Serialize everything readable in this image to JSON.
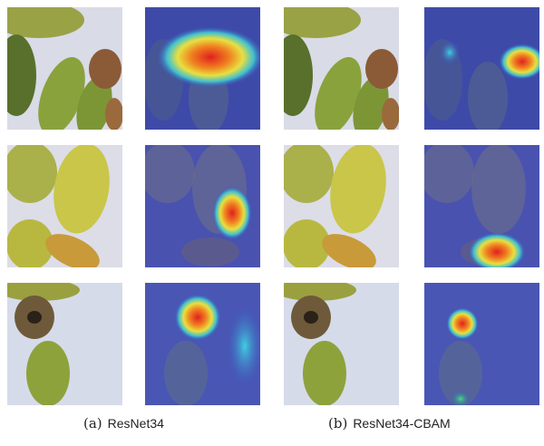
{
  "captions": {
    "a": {
      "label": "(a)",
      "name": "ResNet34"
    },
    "b": {
      "label": "(b)",
      "name": "ResNet34-CBAM"
    }
  },
  "colors": {
    "background": "#ffffff",
    "heatmap_low": "#3b47b8",
    "heatmap_high": "#e02020",
    "grape_green": "#8ea83a",
    "grape_yellow": "#c9c64a"
  }
}
